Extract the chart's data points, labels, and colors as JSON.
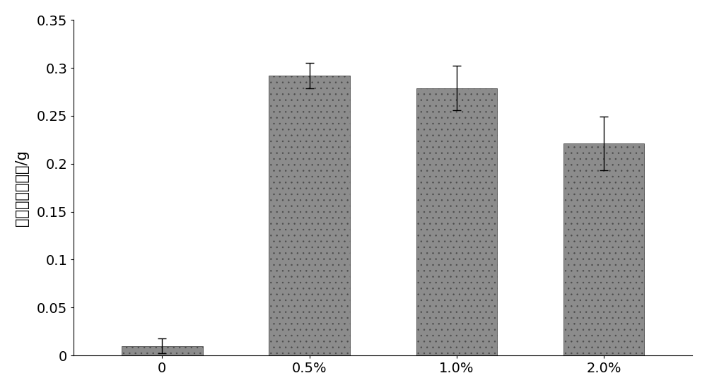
{
  "categories": [
    "0",
    "0.5%",
    "1.0%",
    "2.0%"
  ],
  "values": [
    0.01,
    0.292,
    0.279,
    0.221
  ],
  "errors": [
    0.008,
    0.013,
    0.023,
    0.028
  ],
  "bar_color": "#8c8c8c",
  "bar_edgecolor": "#4a4a4a",
  "ylabel": "地下部干物质重/g",
  "ylim": [
    0,
    0.35
  ],
  "yticks": [
    0,
    0.05,
    0.1,
    0.15,
    0.2,
    0.25,
    0.3,
    0.35
  ],
  "ytick_labels": [
    "0",
    "0.05",
    "0.1",
    "0.15",
    "0.2",
    "0.25",
    "0.3",
    "0.35"
  ],
  "background_color": "#ffffff",
  "bar_width": 0.55,
  "axis_fontsize": 15,
  "tick_fontsize": 14,
  "hatch": ".."
}
